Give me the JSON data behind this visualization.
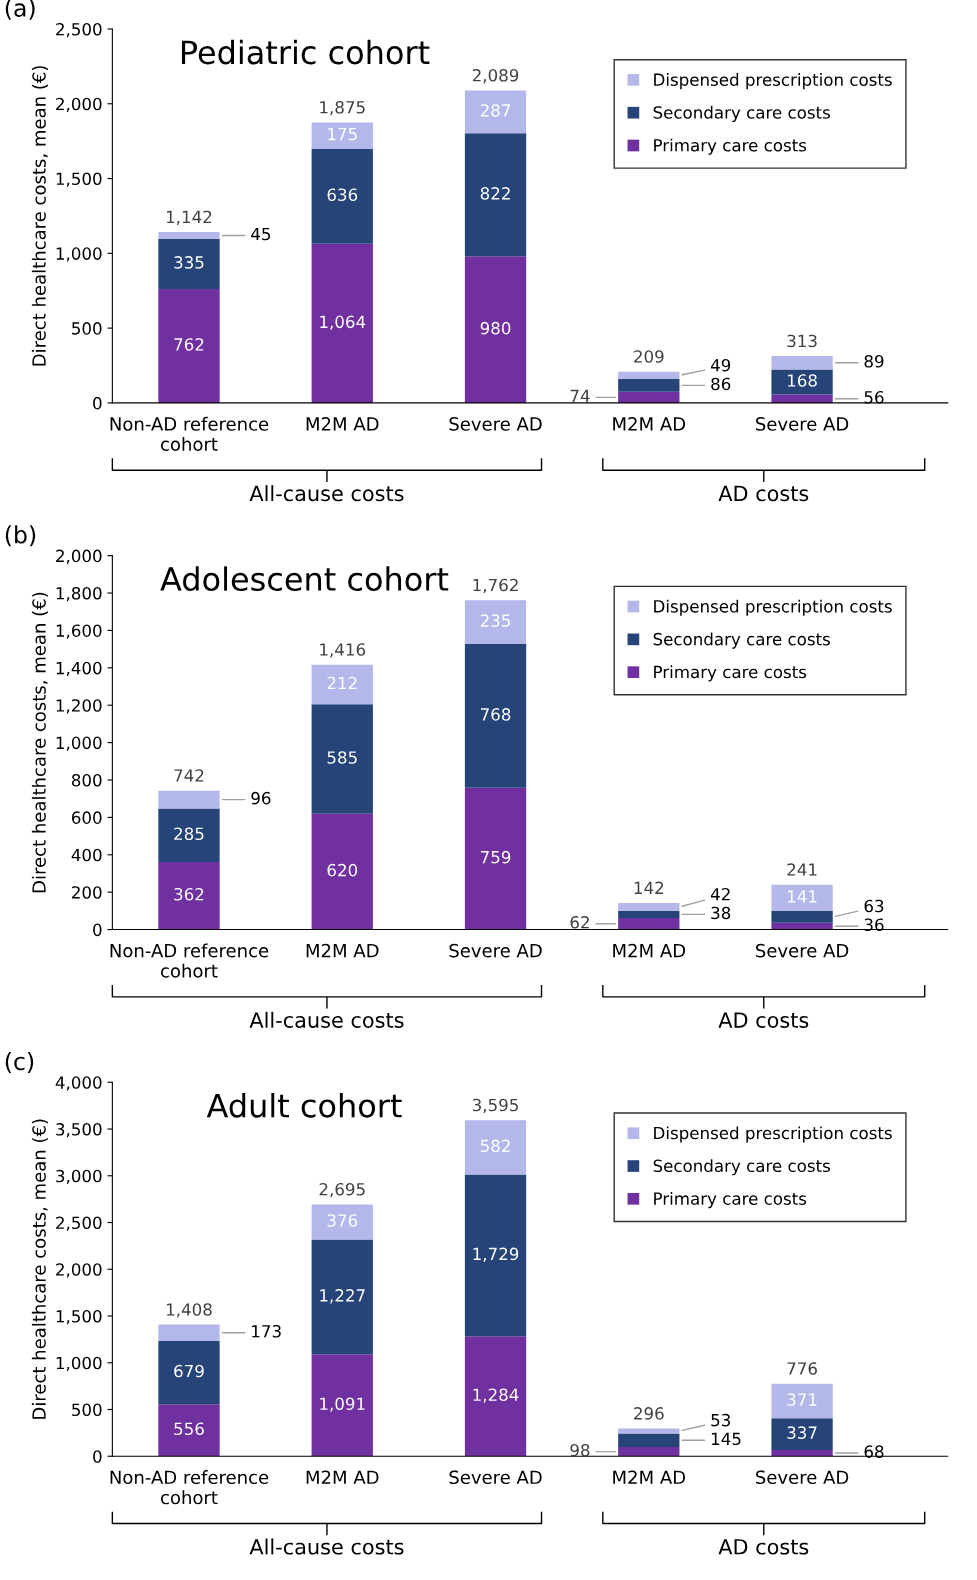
{
  "chart_data": [
    {
      "type": "bar",
      "stacked": true,
      "title": "Pediatric cohort",
      "ylabel": "Direct healthcare costs, mean (€)",
      "categories": [
        "Non-AD reference\ncohort",
        "M2M AD",
        "Severe AD",
        "M2M AD",
        "Severe AD"
      ],
      "series": [
        {
          "name": "Primary care costs",
          "color": "#7030a0",
          "values": [
            762,
            1064,
            980,
            74,
            56
          ],
          "value_labels": [
            "762",
            "1,064",
            "980",
            "74",
            "56"
          ]
        },
        {
          "name": "Secondary care costs",
          "color": "#264478",
          "values": [
            335,
            636,
            822,
            86,
            168
          ],
          "value_labels": [
            "335",
            "636",
            "822",
            "86",
            "168"
          ]
        },
        {
          "name": "Dispensed prescription costs",
          "color": "#b4b7ea",
          "values": [
            45,
            175,
            287,
            49,
            89
          ],
          "value_labels": [
            "45",
            "175",
            "287",
            "49",
            "89"
          ]
        }
      ],
      "totals": [
        "1,142",
        "1,875",
        "2,089",
        "209",
        "313"
      ],
      "ylim": [
        0,
        2500
      ],
      "yticks": [
        0,
        500,
        {
          "value": 1000,
          "label": "1,000"
        },
        {
          "value": 1500,
          "label": "1,500"
        },
        {
          "value": 2000,
          "label": "2,000"
        },
        {
          "value": 2500,
          "label": "2,500"
        }
      ],
      "legend": "top right",
      "grid": false,
      "annotations": [
        "(a)",
        "All-cause costs",
        "AD costs"
      ]
    },
    {
      "type": "bar",
      "stacked": true,
      "title": "Adolescent cohort",
      "ylabel": "Direct healthcare costs, mean (€)",
      "categories": [
        "Non-AD reference\ncohort",
        "M2M AD",
        "Severe AD",
        "M2M AD",
        "Severe AD"
      ],
      "series": [
        {
          "name": "Primary care costs",
          "color": "#7030a0",
          "values": [
            362,
            620,
            759,
            62,
            36
          ],
          "value_labels": [
            "362",
            "620",
            "759",
            "62",
            "36"
          ]
        },
        {
          "name": "Secondary care costs",
          "color": "#264478",
          "values": [
            285,
            585,
            768,
            38,
            63
          ],
          "value_labels": [
            "285",
            "585",
            "768",
            "38",
            "63"
          ]
        },
        {
          "name": "Dispensed prescription costs",
          "color": "#b4b7ea",
          "values": [
            96,
            212,
            235,
            42,
            141
          ],
          "value_labels": [
            "96",
            "212",
            "235",
            "42",
            "141"
          ]
        }
      ],
      "totals": [
        "742",
        "1,416",
        "1,762",
        "142",
        "241"
      ],
      "ylim": [
        0,
        2000
      ],
      "yticks": [
        0,
        200,
        400,
        600,
        800,
        {
          "value": 1000,
          "label": "1,000"
        },
        {
          "value": 1200,
          "label": "1,200"
        },
        {
          "value": 1400,
          "label": "1,400"
        },
        {
          "value": 1600,
          "label": "1,600"
        },
        {
          "value": 1800,
          "label": "1,800"
        },
        {
          "value": 2000,
          "label": "2,000"
        }
      ],
      "legend": "top right",
      "grid": false,
      "annotations": [
        "(b)",
        "All-cause costs",
        "AD costs"
      ]
    },
    {
      "type": "bar",
      "stacked": true,
      "title": "Adult cohort",
      "ylabel": "Direct healthcare costs, mean (€)",
      "categories": [
        "Non-AD reference\ncohort",
        "M2M AD",
        "Severe AD",
        "M2M AD",
        "Severe AD"
      ],
      "series": [
        {
          "name": "Primary care costs",
          "color": "#7030a0",
          "values": [
            556,
            1091,
            1284,
            98,
            68
          ],
          "value_labels": [
            "556",
            "1,091",
            "1,284",
            "98",
            "68"
          ]
        },
        {
          "name": "Secondary care costs",
          "color": "#264478",
          "values": [
            679,
            1227,
            1729,
            145,
            337
          ],
          "value_labels": [
            "679",
            "1,227",
            "1,729",
            "145",
            "337"
          ]
        },
        {
          "name": "Dispensed prescription costs",
          "color": "#b4b7ea",
          "values": [
            173,
            376,
            582,
            53,
            371
          ],
          "value_labels": [
            "173",
            "376",
            "582",
            "53",
            "371"
          ]
        }
      ],
      "totals": [
        "1,408",
        "2,695",
        "3,595",
        "296",
        "776"
      ],
      "ylim": [
        0,
        4000
      ],
      "yticks": [
        0,
        500,
        {
          "value": 1000,
          "label": "1,000"
        },
        {
          "value": 1500,
          "label": "1,500"
        },
        {
          "value": 2000,
          "label": "2,000"
        },
        {
          "value": 2500,
          "label": "2,500"
        },
        {
          "value": 3000,
          "label": "3,000"
        },
        {
          "value": 3500,
          "label": "3,500"
        },
        {
          "value": 4000,
          "label": "4,000"
        }
      ],
      "legend": "top right",
      "grid": false,
      "annotations": [
        "(c)",
        "All-cause costs",
        "AD costs"
      ]
    }
  ]
}
